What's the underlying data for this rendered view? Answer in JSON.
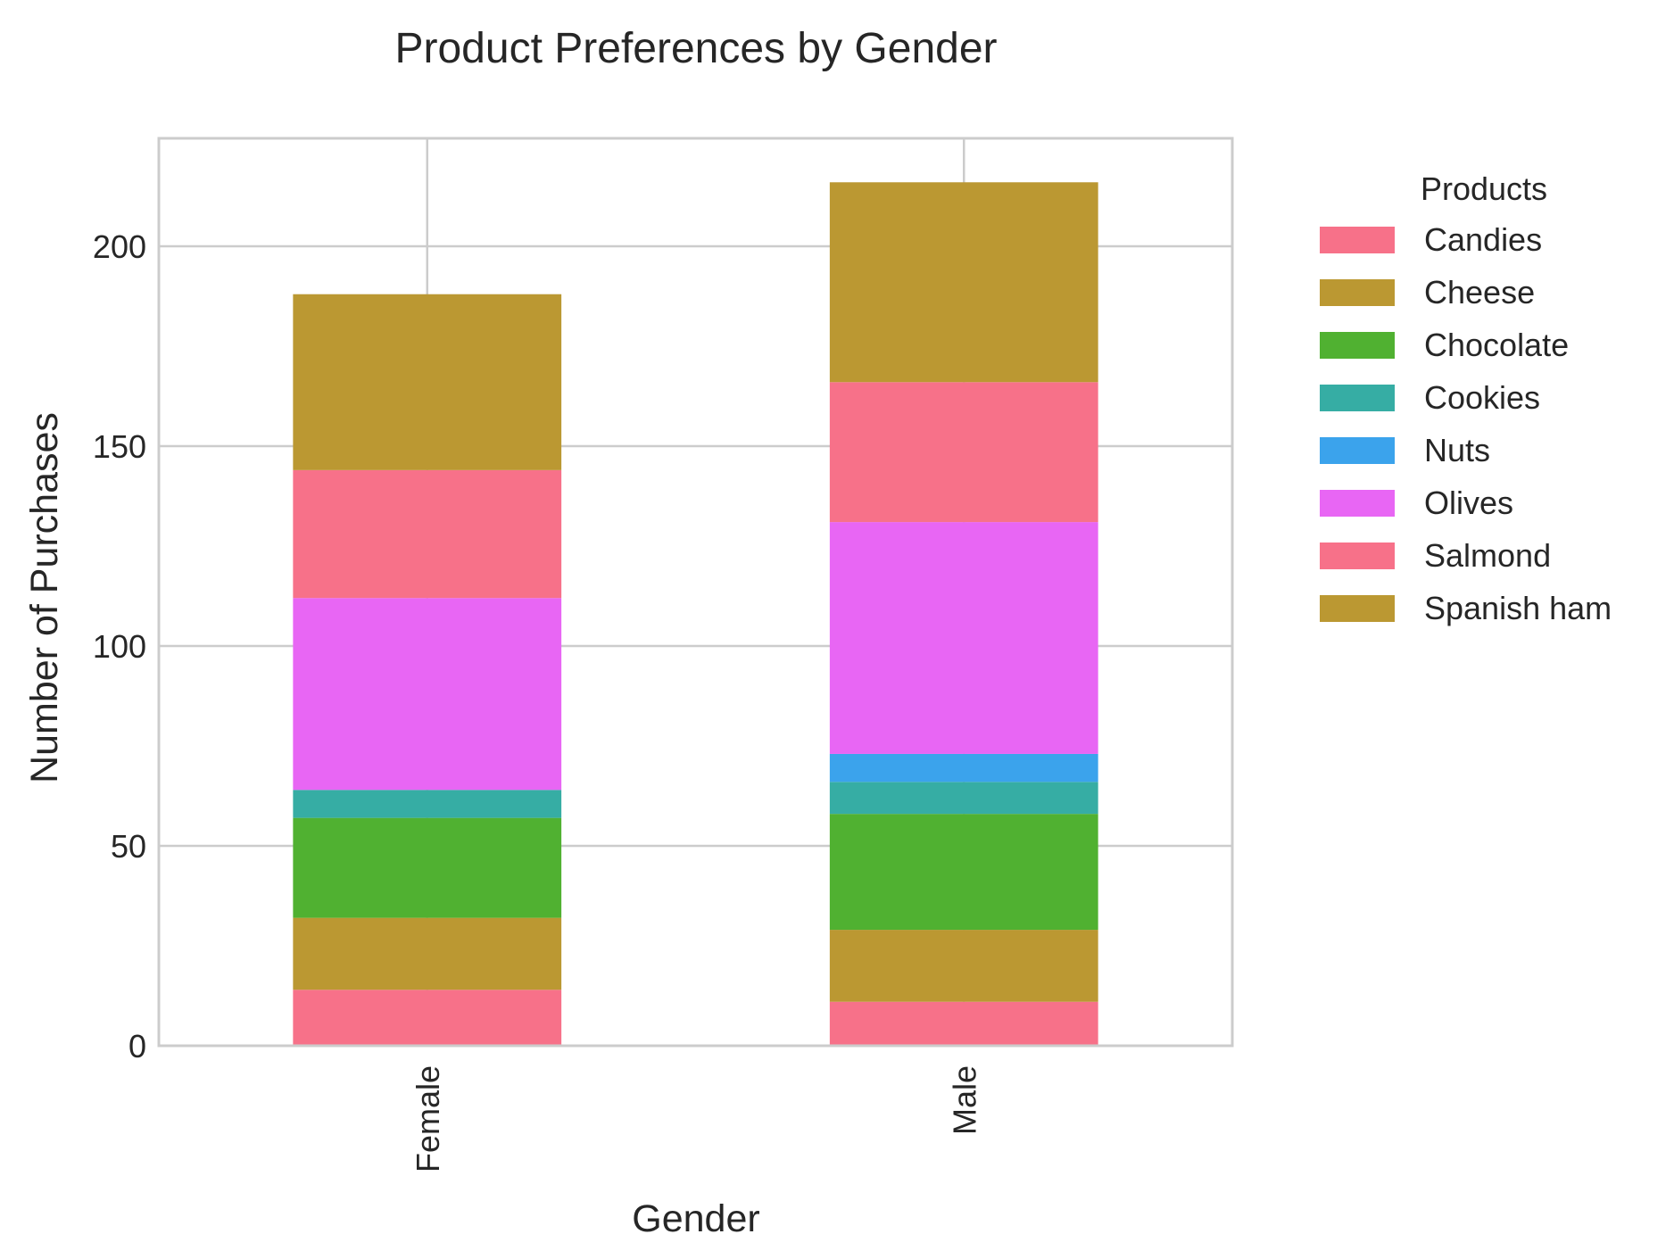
{
  "chart_data": {
    "type": "bar",
    "stacked": true,
    "title": "Product Preferences by Gender",
    "xlabel": "Gender",
    "ylabel": "Number of Purchases",
    "categories": [
      "Female",
      "Male"
    ],
    "ylim": [
      0,
      227
    ],
    "yticks": [
      0,
      50,
      100,
      150,
      200
    ],
    "grid": true,
    "legend": {
      "title": "Products",
      "placement": "outside-right-top"
    },
    "series": [
      {
        "name": "Candies",
        "values": [
          14,
          11
        ],
        "color": "#f77189"
      },
      {
        "name": "Cheese",
        "values": [
          18,
          18
        ],
        "color": "#bb9832"
      },
      {
        "name": "Chocolate",
        "values": [
          25,
          29
        ],
        "color": "#50b131"
      },
      {
        "name": "Cookies",
        "values": [
          7,
          8
        ],
        "color": "#36ada4"
      },
      {
        "name": "Nuts",
        "values": [
          0,
          7
        ],
        "color": "#3ba3ec"
      },
      {
        "name": "Olives",
        "values": [
          48,
          58
        ],
        "color": "#e866f4"
      },
      {
        "name": "Salmond",
        "values": [
          32,
          35
        ],
        "color": "#f77189"
      },
      {
        "name": "Spanish ham",
        "values": [
          44,
          50
        ],
        "color": "#bb9832"
      }
    ]
  }
}
